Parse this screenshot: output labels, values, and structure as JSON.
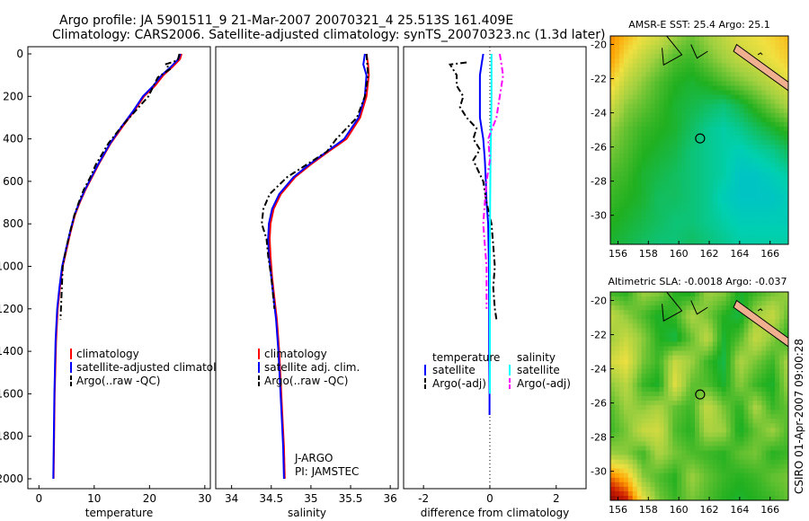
{
  "header": {
    "line1": "Argo profile: JA 5901511_9 21-Mar-2007 20070321_4 25.513S 161.409E",
    "line2": "Climatology: CARS2006. Satellite-adjusted climatology: synTS_20070323.nc (1.3d later)"
  },
  "colors": {
    "climatology": "#ff0000",
    "satellite": "#0000ff",
    "argo": "#000000",
    "salinity_satellite": "#00ffff",
    "salinity_argo": "#ff00ff"
  },
  "chart_data": [
    {
      "type": "line",
      "xlabel": "temperature",
      "xlim": [
        -2,
        31
      ],
      "ylim": [
        2050,
        0
      ],
      "xticks": [
        0,
        10,
        20,
        30
      ],
      "yticks": [
        0,
        200,
        400,
        600,
        800,
        1000,
        1200,
        1400,
        1600,
        1800,
        2000
      ],
      "legend": [
        "climatology",
        "satellite-adjusted climatology",
        "Argo(..raw -QC)"
      ],
      "legend_position": "lower-right",
      "series": [
        {
          "name": "climatology",
          "color": "#ff0000",
          "style": "solid",
          "x": [
            25.8,
            25.5,
            24.2,
            22.5,
            21.0,
            19.0,
            17.2,
            15.2,
            13.0,
            10.8,
            9.6,
            8.4,
            7.4,
            6.5,
            5.7,
            5.0,
            4.3,
            3.8,
            3.4,
            3.1,
            2.85,
            2.65
          ],
          "y": [
            0,
            25,
            60,
            100,
            150,
            200,
            270,
            340,
            420,
            520,
            580,
            640,
            700,
            760,
            840,
            920,
            1000,
            1100,
            1200,
            1350,
            1600,
            2000
          ]
        },
        {
          "name": "satellite-adjusted climatology",
          "color": "#0000ff",
          "style": "solid",
          "x": [
            25.6,
            25.2,
            23.9,
            22.2,
            20.7,
            18.8,
            17.0,
            15.0,
            12.9,
            10.7,
            9.5,
            8.3,
            7.3,
            6.4,
            5.6,
            4.9,
            4.2,
            3.7,
            3.3,
            3.0,
            2.8,
            2.6
          ],
          "y": [
            0,
            25,
            60,
            100,
            150,
            200,
            270,
            340,
            420,
            520,
            580,
            640,
            700,
            760,
            840,
            920,
            1000,
            1100,
            1200,
            1350,
            1600,
            2000
          ]
        },
        {
          "name": "Argo(..raw -QC)",
          "color": "#000000",
          "style": "dashdot",
          "x": [
            25.4,
            25.1,
            22.8,
            23.8,
            21.5,
            19.8,
            17.4,
            15.0,
            12.6,
            10.3,
            9.3,
            8.1,
            7.2,
            6.4,
            5.6,
            4.9,
            4.3,
            3.9
          ],
          "y": [
            0,
            30,
            50,
            70,
            110,
            200,
            270,
            340,
            420,
            520,
            580,
            640,
            700,
            760,
            840,
            920,
            1000,
            1250
          ]
        }
      ]
    },
    {
      "type": "line",
      "xlabel": "salinity",
      "xlim": [
        33.8,
        36.1
      ],
      "ylim": [
        2050,
        0
      ],
      "xticks": [
        34,
        34.5,
        35,
        35.5,
        36
      ],
      "legend": [
        "climatology",
        "satellite adj. clim.",
        "Argo(..raw -QC)"
      ],
      "legend_position": "lower-right",
      "annotations": [
        "J-ARGO",
        "PI: JAMSTEC"
      ],
      "series": [
        {
          "name": "climatology",
          "color": "#ff0000",
          "style": "solid",
          "x": [
            35.7,
            35.72,
            35.73,
            35.7,
            35.62,
            35.45,
            35.22,
            35.0,
            34.8,
            34.62,
            34.53,
            34.49,
            34.48,
            34.49,
            34.51,
            34.54,
            34.57,
            34.6,
            34.62,
            34.64,
            34.66,
            34.67
          ],
          "y": [
            0,
            50,
            100,
            200,
            300,
            400,
            460,
            520,
            580,
            660,
            730,
            800,
            870,
            950,
            1050,
            1150,
            1250,
            1400,
            1550,
            1700,
            1850,
            2000
          ]
        },
        {
          "name": "satellite adj. clim.",
          "color": "#0000ff",
          "style": "solid",
          "x": [
            35.68,
            35.66,
            35.7,
            35.68,
            35.6,
            35.42,
            35.2,
            34.98,
            34.78,
            34.6,
            34.51,
            34.47,
            34.46,
            34.47,
            34.5,
            34.53,
            34.56,
            34.59,
            34.61,
            34.63,
            34.65,
            34.66
          ],
          "y": [
            0,
            50,
            100,
            200,
            300,
            400,
            460,
            520,
            580,
            660,
            730,
            800,
            870,
            950,
            1050,
            1150,
            1250,
            1400,
            1550,
            1700,
            1850,
            2000
          ]
        },
        {
          "name": "Argo(..raw -QC)",
          "color": "#000000",
          "style": "dashdot",
          "x": [
            35.7,
            35.71,
            35.72,
            35.68,
            35.58,
            35.32,
            35.2,
            34.95,
            34.7,
            34.48,
            34.4,
            34.38,
            34.44,
            34.46,
            34.5,
            34.54
          ],
          "y": [
            0,
            50,
            100,
            200,
            300,
            400,
            460,
            520,
            580,
            660,
            730,
            800,
            870,
            950,
            1050,
            1200
          ]
        }
      ]
    },
    {
      "type": "line",
      "xlabel": "difference from climatology",
      "xlim": [
        -2.6,
        2.9
      ],
      "ylim": [
        2050,
        0
      ],
      "xticks": [
        -2,
        0,
        2
      ],
      "legend_columns": [
        {
          "heading": "temperature",
          "entries": [
            "satellite",
            "Argo(-adj)"
          ]
        },
        {
          "heading": "salinity",
          "entries": [
            "satellite",
            "Argo(-adj)"
          ]
        }
      ],
      "legend_position": "lower-center",
      "series": [
        {
          "name": "temperature satellite",
          "color": "#0000ff",
          "style": "solid",
          "x": [
            -0.2,
            -0.25,
            -0.3,
            -0.3,
            -0.3,
            -0.2,
            -0.15,
            -0.12,
            -0.1,
            -0.05,
            -0.03,
            -0.02,
            -0.02,
            -0.01,
            -0.01
          ],
          "y": [
            0,
            50,
            100,
            200,
            300,
            400,
            500,
            600,
            700,
            800,
            1000,
            1200,
            1400,
            1600,
            1700
          ]
        },
        {
          "name": "temperature Argo(-adj)",
          "color": "#000000",
          "style": "dashdot",
          "x": [
            -0.7,
            -1.2,
            -1.0,
            -1.0,
            -0.8,
            -0.9,
            -0.7,
            -0.4,
            -0.5,
            -0.3,
            -0.5,
            -0.35,
            -0.2,
            -0.15,
            -0.1,
            0.05,
            0.1,
            0.15,
            0.1,
            0.15,
            0.2
          ],
          "y": [
            40,
            50,
            100,
            150,
            200,
            250,
            300,
            350,
            400,
            450,
            500,
            550,
            600,
            650,
            700,
            800,
            900,
            1000,
            1100,
            1200,
            1250
          ]
        },
        {
          "name": "salinity satellite",
          "color": "#00ffff",
          "style": "solid",
          "x": [
            0.05,
            0.05,
            0.05,
            0.04,
            0.03,
            0.02,
            0.01,
            0.0,
            0.0,
            0.0,
            0.0
          ],
          "y": [
            0,
            100,
            200,
            300,
            400,
            500,
            700,
            900,
            1200,
            1500,
            1600
          ]
        },
        {
          "name": "salinity Argo(-adj)",
          "color": "#ff00ff",
          "style": "dashdot",
          "x": [
            0.3,
            0.4,
            0.3,
            0.2,
            -0.05,
            0.0,
            -0.1,
            -0.15,
            -0.2,
            -0.15,
            -0.1,
            -0.1
          ],
          "y": [
            0,
            100,
            200,
            300,
            400,
            500,
            600,
            700,
            800,
            900,
            1000,
            1200
          ]
        }
      ]
    },
    {
      "type": "heatmap",
      "title": "AMSR-E SST: 25.4 Argo: 25.1",
      "xticks": [
        156,
        158,
        160,
        162,
        164,
        166
      ],
      "yticks": [
        -20,
        -22,
        -24,
        -26,
        -28,
        -30
      ],
      "xlim": [
        155.5,
        167.2
      ],
      "ylim": [
        -31.7,
        -19.5
      ],
      "marker": {
        "lon": 161.4,
        "lat": -25.5
      },
      "colormap": [
        "#0000a8",
        "#00a0ff",
        "#00d0b0",
        "#20b020",
        "#a0d040",
        "#f0e040",
        "#ffa000",
        "#d02000",
        "#800000"
      ],
      "grid_values": [
        [
          0.78,
          0.7,
          0.62,
          0.58,
          0.5,
          0.45,
          0.5,
          0.55,
          0.6,
          0.62,
          0.65,
          0.7
        ],
        [
          0.75,
          0.62,
          0.55,
          0.48,
          0.42,
          0.4,
          0.45,
          0.5,
          0.55,
          0.58,
          0.62,
          0.66
        ],
        [
          0.66,
          0.55,
          0.48,
          0.42,
          0.38,
          0.36,
          0.38,
          0.42,
          0.46,
          0.5,
          0.55,
          0.6
        ],
        [
          0.58,
          0.48,
          0.44,
          0.4,
          0.36,
          0.34,
          0.32,
          0.3,
          0.34,
          0.4,
          0.46,
          0.52
        ],
        [
          0.5,
          0.44,
          0.4,
          0.38,
          0.36,
          0.32,
          0.28,
          0.26,
          0.28,
          0.32,
          0.36,
          0.4
        ],
        [
          0.46,
          0.42,
          0.38,
          0.36,
          0.34,
          0.3,
          0.28,
          0.26,
          0.24,
          0.26,
          0.28,
          0.32
        ],
        [
          0.42,
          0.4,
          0.36,
          0.34,
          0.32,
          0.3,
          0.28,
          0.26,
          0.22,
          0.22,
          0.24,
          0.26
        ],
        [
          0.4,
          0.38,
          0.36,
          0.32,
          0.32,
          0.3,
          0.28,
          0.24,
          0.22,
          0.22,
          0.22,
          0.24
        ],
        [
          0.38,
          0.36,
          0.34,
          0.32,
          0.3,
          0.3,
          0.28,
          0.26,
          0.24,
          0.24,
          0.24,
          0.24
        ],
        [
          0.36,
          0.34,
          0.32,
          0.3,
          0.3,
          0.32,
          0.3,
          0.28,
          0.26,
          0.26,
          0.26,
          0.26
        ]
      ]
    },
    {
      "type": "heatmap",
      "title": "Altimetric SLA: -0.0018 Argo: -0.037",
      "xticks": [
        156,
        158,
        160,
        162,
        164,
        166
      ],
      "yticks": [
        -20,
        -22,
        -24,
        -26,
        -28,
        -30
      ],
      "xlim": [
        155.5,
        167.2
      ],
      "ylim": [
        -31.7,
        -19.5
      ],
      "marker": {
        "lon": 161.4,
        "lat": -25.5
      },
      "colormap": [
        "#0000a8",
        "#00a0ff",
        "#00d0b0",
        "#20b020",
        "#a0d040",
        "#f0e040",
        "#ffa000",
        "#d02000",
        "#800000"
      ],
      "grid_values": [
        [
          0.4,
          0.38,
          0.5,
          0.48,
          0.38,
          0.36,
          0.5,
          0.48,
          0.36,
          0.4,
          0.45,
          0.5
        ],
        [
          0.55,
          0.48,
          0.42,
          0.36,
          0.4,
          0.52,
          0.46,
          0.38,
          0.34,
          0.5,
          0.56,
          0.44
        ],
        [
          0.5,
          0.56,
          0.48,
          0.38,
          0.34,
          0.44,
          0.55,
          0.36,
          0.42,
          0.56,
          0.48,
          0.38
        ],
        [
          0.58,
          0.62,
          0.46,
          0.4,
          0.56,
          0.5,
          0.4,
          0.34,
          0.52,
          0.46,
          0.4,
          0.52
        ],
        [
          0.48,
          0.54,
          0.4,
          0.36,
          0.6,
          0.44,
          0.42,
          0.36,
          0.48,
          0.4,
          0.36,
          0.5
        ],
        [
          0.42,
          0.5,
          0.48,
          0.52,
          0.44,
          0.4,
          0.56,
          0.46,
          0.38,
          0.52,
          0.4,
          0.44
        ],
        [
          0.4,
          0.46,
          0.56,
          0.58,
          0.42,
          0.38,
          0.52,
          0.5,
          0.36,
          0.44,
          0.5,
          0.42
        ],
        [
          0.5,
          0.48,
          0.4,
          0.52,
          0.46,
          0.42,
          0.4,
          0.38,
          0.44,
          0.46,
          0.38,
          0.4
        ],
        [
          0.8,
          0.7,
          0.48,
          0.42,
          0.38,
          0.5,
          0.44,
          0.4,
          0.38,
          0.4,
          0.44,
          0.46
        ],
        [
          0.98,
          0.9,
          0.62,
          0.46,
          0.4,
          0.46,
          0.42,
          0.38,
          0.36,
          0.38,
          0.4,
          0.44
        ]
      ]
    }
  ],
  "side_text": "CSIRO 01-Apr-2007 09:00:28"
}
